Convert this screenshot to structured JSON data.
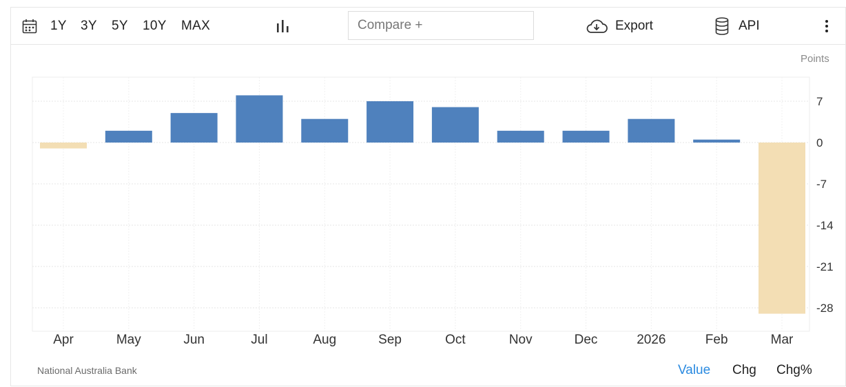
{
  "toolbar": {
    "calendar_icon": "calendar-icon",
    "ranges": [
      "1Y",
      "3Y",
      "5Y",
      "10Y",
      "MAX"
    ],
    "chart_type_icon": "bar-chart-icon",
    "compare_placeholder": "Compare +",
    "export_label": "Export",
    "export_icon": "cloud-download-icon",
    "api_label": "API",
    "api_icon": "database-icon",
    "more_icon": "vertical-dots-icon"
  },
  "unit_label": "Points",
  "source": "National Australia Bank",
  "modes": [
    "Value",
    "Chg",
    "Chg%"
  ],
  "active_mode": "Value",
  "colors": {
    "positive": "#4f81bd",
    "negative": "#f3deb4",
    "accent": "#2a8ae0"
  },
  "chart_data": {
    "type": "bar",
    "categories": [
      "Apr",
      "May",
      "Jun",
      "Jul",
      "Aug",
      "Sep",
      "Oct",
      "Nov",
      "Dec",
      "2026",
      "Feb",
      "Mar"
    ],
    "values": [
      -1,
      2,
      5,
      8,
      4,
      7,
      6,
      2,
      2,
      4,
      0.5,
      -29
    ],
    "yticks": [
      7,
      0,
      -7,
      -14,
      -21,
      -28
    ],
    "ylim": [
      -29,
      11
    ],
    "ylabel": "Points",
    "grid": true
  }
}
